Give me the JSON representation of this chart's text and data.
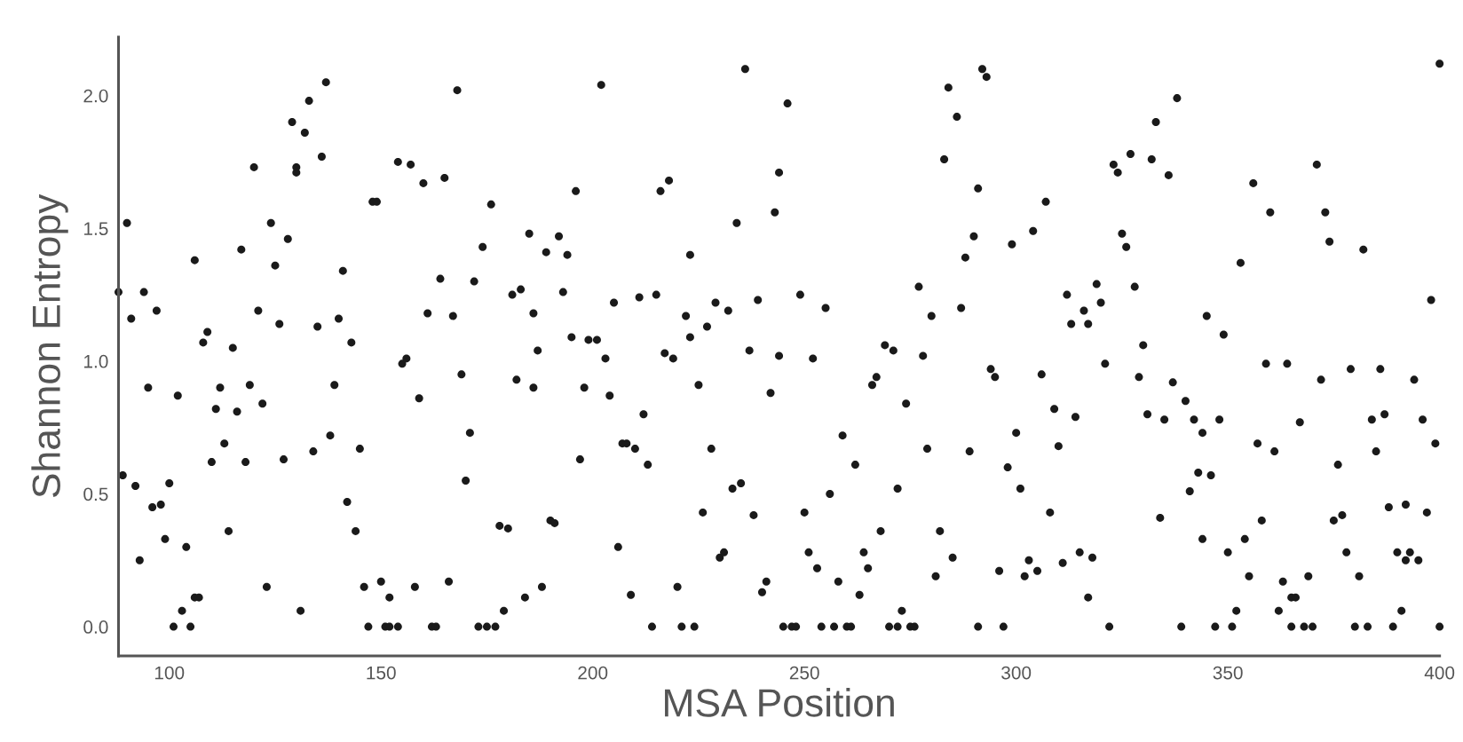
{
  "chart_data": {
    "type": "scatter",
    "xlabel": "MSA Position",
    "ylabel": "Shannon Entropy",
    "xlim": [
      88,
      400
    ],
    "ylim": [
      -0.11,
      2.22
    ],
    "xticks": [
      100,
      150,
      200,
      250,
      300,
      350,
      400
    ],
    "yticks": [
      {
        "value": 0,
        "label": "0.0"
      },
      {
        "value": 0.5,
        "label": "0.5"
      },
      {
        "value": 1,
        "label": "1.0"
      },
      {
        "value": 1.5,
        "label": "1.5"
      },
      {
        "value": 2,
        "label": "2.0"
      }
    ],
    "grid": false,
    "marker": "circle",
    "series": [
      {
        "color": "#1a1a1a",
        "x": [
          88,
          89,
          90,
          91,
          92,
          93,
          94,
          95,
          96,
          97,
          98,
          99,
          100,
          101,
          102,
          103,
          104,
          105,
          106,
          106,
          107,
          108,
          109,
          110,
          111,
          112,
          113,
          114,
          115,
          116,
          117,
          118,
          119,
          120,
          121,
          122,
          123,
          124,
          125,
          126,
          127,
          128,
          129,
          130,
          130,
          131,
          132,
          133,
          134,
          135,
          136,
          137,
          138,
          139,
          140,
          141,
          142,
          143,
          144,
          145,
          146,
          147,
          148,
          149,
          150,
          151,
          152,
          152,
          154,
          154,
          155,
          156,
          157,
          158,
          159,
          160,
          161,
          162,
          163,
          164,
          165,
          166,
          167,
          168,
          169,
          170,
          171,
          172,
          173,
          174,
          175,
          176,
          177,
          178,
          179,
          180,
          181,
          182,
          183,
          184,
          185,
          186,
          186,
          187,
          188,
          189,
          190,
          191,
          192,
          193,
          194,
          195,
          196,
          197,
          198,
          199,
          201,
          202,
          203,
          204,
          205,
          206,
          207,
          208,
          209,
          210,
          211,
          212,
          213,
          214,
          215,
          216,
          217,
          218,
          219,
          220,
          221,
          222,
          223,
          223,
          224,
          225,
          226,
          227,
          228,
          229,
          230,
          231,
          232,
          233,
          234,
          235,
          236,
          237,
          238,
          239,
          240,
          241,
          242,
          243,
          244,
          244,
          245,
          246,
          247,
          248,
          249,
          250,
          251,
          252,
          253,
          254,
          255,
          256,
          257,
          258,
          259,
          260,
          261,
          262,
          263,
          264,
          265,
          266,
          267,
          268,
          269,
          270,
          271,
          272,
          272,
          273,
          274,
          275,
          276,
          277,
          278,
          279,
          280,
          281,
          282,
          283,
          284,
          285,
          286,
          287,
          288,
          289,
          290,
          291,
          291,
          292,
          293,
          294,
          295,
          296,
          297,
          298,
          299,
          300,
          301,
          302,
          303,
          304,
          305,
          306,
          307,
          308,
          309,
          310,
          311,
          312,
          313,
          314,
          315,
          316,
          317,
          317,
          318,
          319,
          320,
          321,
          322,
          323,
          324,
          325,
          326,
          327,
          328,
          329,
          330,
          331,
          332,
          333,
          334,
          335,
          336,
          337,
          338,
          339,
          340,
          341,
          342,
          343,
          344,
          344,
          345,
          346,
          347,
          348,
          349,
          350,
          351,
          352,
          353,
          354,
          355,
          356,
          357,
          358,
          359,
          360,
          361,
          362,
          363,
          364,
          365,
          365,
          366,
          367,
          368,
          369,
          370,
          371,
          372,
          373,
          374,
          375,
          376,
          377,
          378,
          379,
          380,
          381,
          382,
          383,
          384,
          385,
          386,
          387,
          388,
          389,
          390,
          391,
          392,
          392,
          393,
          394,
          395,
          396,
          397,
          398,
          399,
          400,
          400
        ],
        "values": [
          1.26,
          0.57,
          1.52,
          1.16,
          0.53,
          0.25,
          1.26,
          0.9,
          0.45,
          1.19,
          0.46,
          0.33,
          0.54,
          0.0,
          0.87,
          0.06,
          0.3,
          0.0,
          1.38,
          0.11,
          0.11,
          1.07,
          1.11,
          0.62,
          0.82,
          0.9,
          0.69,
          0.36,
          1.05,
          0.81,
          1.42,
          0.62,
          0.91,
          1.73,
          1.19,
          0.84,
          0.15,
          1.52,
          1.36,
          1.14,
          0.63,
          1.46,
          1.9,
          1.71,
          1.73,
          0.06,
          1.86,
          1.98,
          0.66,
          1.13,
          1.77,
          2.05,
          0.72,
          0.91,
          1.16,
          1.34,
          0.47,
          1.07,
          0.36,
          0.67,
          0.15,
          0.0,
          1.6,
          1.6,
          0.17,
          0.0,
          0.0,
          0.11,
          0.0,
          1.75,
          0.99,
          1.01,
          1.74,
          0.15,
          0.86,
          1.67,
          1.18,
          0.0,
          0.0,
          1.31,
          1.69,
          0.17,
          1.17,
          2.02,
          0.95,
          0.55,
          0.73,
          1.3,
          0.0,
          1.43,
          0.0,
          1.59,
          0.0,
          0.38,
          0.06,
          0.37,
          1.25,
          0.93,
          1.27,
          0.11,
          1.48,
          1.18,
          0.9,
          1.04,
          0.15,
          1.41,
          0.4,
          0.39,
          1.47,
          1.26,
          1.4,
          1.09,
          1.64,
          0.63,
          0.9,
          1.08,
          1.08,
          2.04,
          1.01,
          0.87,
          1.22,
          0.3,
          0.69,
          0.69,
          0.12,
          0.67,
          1.24,
          0.8,
          0.61,
          0.0,
          1.25,
          1.64,
          1.03,
          1.68,
          1.01,
          0.15,
          0.0,
          1.17,
          1.09,
          1.4,
          0.0,
          0.91,
          0.43,
          1.13,
          0.67,
          1.22,
          0.26,
          0.28,
          1.19,
          0.52,
          1.52,
          0.54,
          2.1,
          1.04,
          0.42,
          1.23,
          0.13,
          0.17,
          0.88,
          1.56,
          1.02,
          1.71,
          0.0,
          1.97,
          0.0,
          0.0,
          1.25,
          0.43,
          0.28,
          1.01,
          0.22,
          0.0,
          1.2,
          0.5,
          0.0,
          0.17,
          0.72,
          0.0,
          0.0,
          0.61,
          0.12,
          0.28,
          0.22,
          0.91,
          0.94,
          0.36,
          1.06,
          0.0,
          1.04,
          0.52,
          0.0,
          0.06,
          0.84,
          0.0,
          0.0,
          1.28,
          1.02,
          0.67,
          1.17,
          0.19,
          0.36,
          1.76,
          2.03,
          0.26,
          1.92,
          1.2,
          1.39,
          0.66,
          1.47,
          1.65,
          0.0,
          2.1,
          2.07,
          0.97,
          0.94,
          0.21,
          0.0,
          0.6,
          1.44,
          0.73,
          0.52,
          0.19,
          0.25,
          1.49,
          0.21,
          0.95,
          1.6,
          0.43,
          0.82,
          0.68,
          0.24,
          1.25,
          1.14,
          0.79,
          0.28,
          1.19,
          1.14,
          0.11,
          0.26,
          1.29,
          1.22,
          0.99,
          0.0,
          1.74,
          1.71,
          1.48,
          1.43,
          1.78,
          1.28,
          0.94,
          1.06,
          0.8,
          1.76,
          1.9,
          0.41,
          0.78,
          1.7,
          0.92,
          1.99,
          0.0,
          0.85,
          0.51,
          0.78,
          0.58,
          0.33,
          0.73,
          1.17,
          0.57,
          0.0,
          0.78,
          1.1,
          0.28,
          0.0,
          0.06,
          1.37,
          0.33,
          0.19,
          1.67,
          0.69,
          0.4,
          0.99,
          1.56,
          0.66,
          0.06,
          0.17,
          0.99,
          0.11,
          0.0,
          0.11,
          0.77,
          0.0,
          0.19,
          0.0,
          1.74,
          0.93,
          1.56,
          1.45,
          0.4,
          0.61,
          0.42,
          0.28,
          0.97,
          0.0,
          0.19,
          1.42,
          0.0,
          0.78,
          0.66,
          0.97,
          0.8,
          0.45,
          0.0,
          0.28,
          0.06,
          0.46,
          0.25,
          0.28,
          0.93,
          0.25,
          0.78,
          0.43,
          1.23,
          0.69,
          2.12,
          0.0
        ]
      }
    ]
  }
}
